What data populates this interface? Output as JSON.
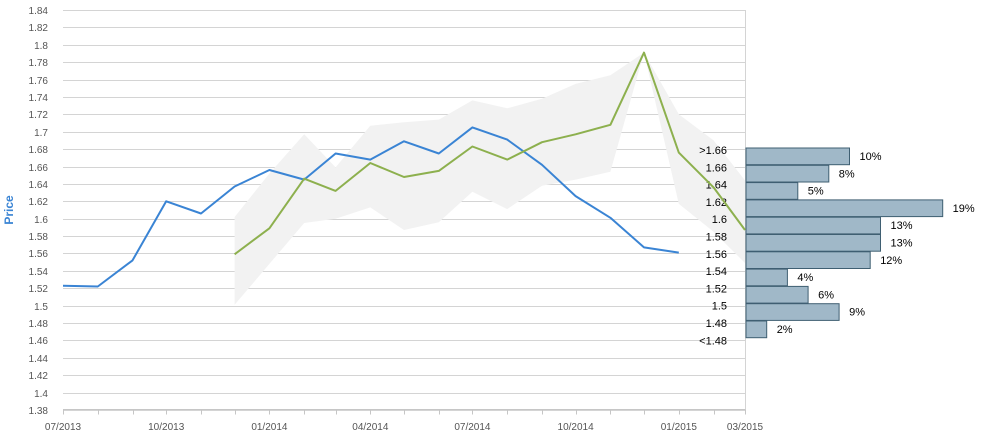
{
  "chart_data": {
    "type": "line",
    "title": "",
    "xlabel": "",
    "ylabel": "Price",
    "ylim": [
      1.38,
      1.84
    ],
    "yticks": [
      "1.38",
      "1.4",
      "1.42",
      "1.44",
      "1.46",
      "1.48",
      "1.5",
      "1.52",
      "1.54",
      "1.56",
      "1.58",
      "1.6",
      "1.62",
      "1.64",
      "1.66",
      "1.68",
      "1.7",
      "1.72",
      "1.74",
      "1.76",
      "1.78",
      "1.8",
      "1.82",
      "1.84"
    ],
    "xticks": [
      "07/2013",
      "10/2013",
      "01/2014",
      "04/2014",
      "07/2014",
      "10/2014",
      "01/2015",
      "03/2015"
    ],
    "grid": true,
    "series": [
      {
        "color": "#3a84d4",
        "x": [
          "2013-07-01",
          "2013-08-01",
          "2013-09-01",
          "2013-10-01",
          "2013-11-01",
          "2013-12-01",
          "2014-01-01",
          "2014-02-01",
          "2014-03-01",
          "2014-04-01",
          "2014-05-01",
          "2014-06-01",
          "2014-07-01",
          "2014-08-01",
          "2014-09-01",
          "2014-10-01",
          "2014-11-01",
          "2014-12-01",
          "2015-01-01"
        ],
        "values": [
          1.523,
          1.522,
          1.552,
          1.62,
          1.606,
          1.637,
          1.656,
          1.645,
          1.675,
          1.668,
          1.689,
          1.675,
          1.705,
          1.691,
          1.662,
          1.626,
          1.601,
          1.567,
          1.561
        ]
      },
      {
        "color": "#8db04e",
        "x": [
          "2013-12-01",
          "2014-01-01",
          "2014-02-01",
          "2014-03-01",
          "2014-04-01",
          "2014-05-01",
          "2014-06-01",
          "2014-07-01",
          "2014-08-01",
          "2014-09-01",
          "2014-10-01",
          "2014-11-01",
          "2014-12-01",
          "2015-01-01",
          "2015-02-01",
          "2015-03-01"
        ],
        "values": [
          1.559,
          1.589,
          1.646,
          1.632,
          1.664,
          1.648,
          1.655,
          1.683,
          1.668,
          1.688,
          1.697,
          1.708,
          1.791,
          1.676,
          1.636,
          1.587
        ]
      }
    ],
    "band": {
      "color": "#f2f2f2",
      "x": [
        "2013-12-01",
        "2014-01-01",
        "2014-02-01",
        "2014-03-01",
        "2014-04-01",
        "2014-05-01",
        "2014-06-01",
        "2014-07-01",
        "2014-08-01",
        "2014-09-01",
        "2014-10-01",
        "2014-11-01",
        "2014-12-01",
        "2015-01-01",
        "2015-02-01",
        "2015-03-01"
      ],
      "upper": [
        1.602,
        1.652,
        1.697,
        1.659,
        1.707,
        1.711,
        1.714,
        1.736,
        1.727,
        1.738,
        1.755,
        1.765,
        1.791,
        1.72,
        1.69,
        1.644
      ],
      "lower": [
        1.501,
        1.548,
        1.595,
        1.6,
        1.613,
        1.587,
        1.596,
        1.631,
        1.611,
        1.638,
        1.645,
        1.654,
        1.791,
        1.617,
        1.585,
        1.549
      ]
    },
    "distribution": {
      "color": "#a0b8c8",
      "border": "#3f5f72",
      "bins": [
        {
          "label": ">1.66",
          "value": 10,
          "value_label": "10%"
        },
        {
          "label": "1.66",
          "value": 8,
          "value_label": "8%"
        },
        {
          "label": "1.64",
          "value": 5,
          "value_label": "5%"
        },
        {
          "label": "1.62",
          "value": 19,
          "value_label": "19%"
        },
        {
          "label": "1.6",
          "value": 13,
          "value_label": "13%"
        },
        {
          "label": "1.58",
          "value": 13,
          "value_label": "13%"
        },
        {
          "label": "1.56",
          "value": 12,
          "value_label": "12%"
        },
        {
          "label": "1.54",
          "value": 4,
          "value_label": "4%"
        },
        {
          "label": "1.52",
          "value": 6,
          "value_label": "6%"
        },
        {
          "label": "1.5",
          "value": 9,
          "value_label": "9%"
        },
        {
          "label": "1.48",
          "value": 2,
          "value_label": "2%"
        },
        {
          "label": "<1.48",
          "value": 0,
          "value_label": ""
        }
      ]
    }
  }
}
